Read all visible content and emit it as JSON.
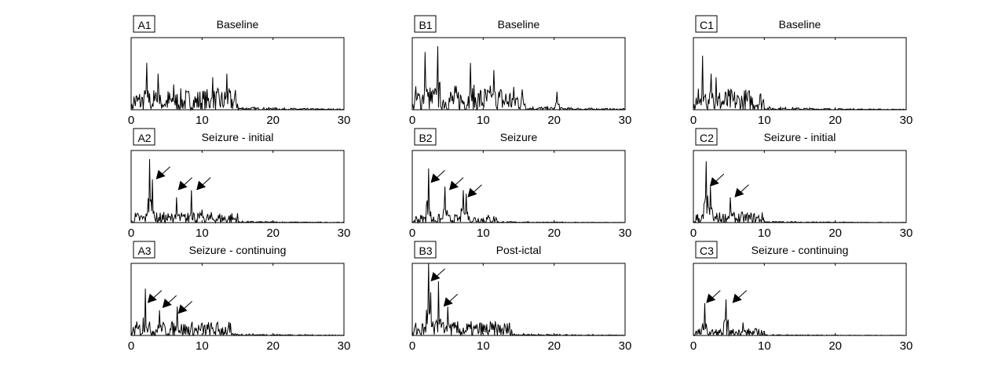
{
  "chart_data": [
    {
      "type": "line",
      "label": "A1",
      "title": "Baseline",
      "xlim": [
        0,
        30
      ],
      "ylim": [
        0,
        1
      ],
      "xticks": [
        0,
        10,
        20,
        30
      ],
      "noise_level": 0.3,
      "noise_cutoff": 15,
      "peaks": [
        [
          2.2,
          0.65
        ],
        [
          3.8,
          0.5
        ],
        [
          6,
          0.35
        ],
        [
          11.5,
          0.45
        ],
        [
          13.5,
          0.5
        ]
      ],
      "arrows": []
    },
    {
      "type": "line",
      "label": "B1",
      "title": "Baseline",
      "xlim": [
        0,
        30
      ],
      "ylim": [
        0,
        1
      ],
      "xticks": [
        0,
        10,
        20,
        30
      ],
      "noise_level": 0.35,
      "noise_cutoff": 16,
      "peaks": [
        [
          1.8,
          0.8
        ],
        [
          3.6,
          0.88
        ],
        [
          8.2,
          0.65
        ],
        [
          11.5,
          0.55
        ],
        [
          20.4,
          0.25
        ]
      ],
      "arrows": []
    },
    {
      "type": "line",
      "label": "C1",
      "title": "Baseline",
      "xlim": [
        0,
        30
      ],
      "ylim": [
        0,
        1
      ],
      "xticks": [
        0,
        10,
        20,
        30
      ],
      "noise_level": 0.3,
      "noise_cutoff": 10,
      "peaks": [
        [
          1.3,
          0.75
        ],
        [
          2.5,
          0.5
        ],
        [
          3.2,
          0.45
        ]
      ],
      "arrows": []
    },
    {
      "type": "line",
      "label": "A2",
      "title": "Seizure - initial",
      "xlim": [
        0,
        30
      ],
      "ylim": [
        0,
        1
      ],
      "xticks": [
        0,
        10,
        20,
        30
      ],
      "noise_level": 0.15,
      "noise_cutoff": 15,
      "peaks": [
        [
          2.6,
          0.88
        ],
        [
          3,
          0.6
        ],
        [
          6.4,
          0.35
        ],
        [
          8.5,
          0.45
        ],
        [
          10,
          0.18
        ]
      ],
      "arrows": [
        [
          3.5,
          0.6
        ],
        [
          6.6,
          0.45
        ],
        [
          9.2,
          0.45
        ]
      ]
    },
    {
      "type": "line",
      "label": "B2",
      "title": "Seizure",
      "xlim": [
        0,
        30
      ],
      "ylim": [
        0,
        1
      ],
      "xticks": [
        0,
        10,
        20,
        30
      ],
      "noise_level": 0.12,
      "noise_cutoff": 12,
      "peaks": [
        [
          2.3,
          0.75
        ],
        [
          4.6,
          0.5
        ],
        [
          7.2,
          0.45
        ],
        [
          7.6,
          0.4
        ]
      ],
      "arrows": [
        [
          2.6,
          0.55
        ],
        [
          5.2,
          0.45
        ],
        [
          7.8,
          0.35
        ]
      ]
    },
    {
      "type": "line",
      "label": "C2",
      "title": "Seizure - initial",
      "xlim": [
        0,
        30
      ],
      "ylim": [
        0,
        1
      ],
      "xticks": [
        0,
        10,
        20,
        30
      ],
      "noise_level": 0.15,
      "noise_cutoff": 10,
      "peaks": [
        [
          1.8,
          0.85
        ],
        [
          2.4,
          0.5
        ],
        [
          5.2,
          0.35
        ]
      ],
      "arrows": [
        [
          2.3,
          0.5
        ],
        [
          5.8,
          0.35
        ]
      ]
    },
    {
      "type": "line",
      "label": "A3",
      "title": "Seizure - continuing",
      "xlim": [
        0,
        30
      ],
      "ylim": [
        0,
        1
      ],
      "xticks": [
        0,
        10,
        20,
        30
      ],
      "noise_level": 0.2,
      "noise_cutoff": 14,
      "peaks": [
        [
          2,
          0.65
        ],
        [
          4,
          0.35
        ],
        [
          6.5,
          0.4
        ]
      ],
      "arrows": [
        [
          2.3,
          0.45
        ],
        [
          4.4,
          0.38
        ],
        [
          6.6,
          0.3
        ]
      ]
    },
    {
      "type": "line",
      "label": "B3",
      "title": "Post-ictal",
      "xlim": [
        0,
        30
      ],
      "ylim": [
        0,
        1
      ],
      "xticks": [
        0,
        10,
        20,
        30
      ],
      "noise_level": 0.2,
      "noise_cutoff": 14,
      "peaks": [
        [
          2.3,
          1.0
        ],
        [
          2.6,
          0.6
        ],
        [
          3.7,
          0.75
        ],
        [
          5,
          0.4
        ]
      ],
      "arrows": [
        [
          2.6,
          0.75
        ],
        [
          4.4,
          0.4
        ]
      ]
    },
    {
      "type": "line",
      "label": "C3",
      "title": "Seizure - continuing",
      "xlim": [
        0,
        30
      ],
      "ylim": [
        0,
        1
      ],
      "xticks": [
        0,
        10,
        20,
        30
      ],
      "noise_level": 0.1,
      "noise_cutoff": 10,
      "peaks": [
        [
          1.6,
          0.45
        ],
        [
          4.6,
          0.5
        ],
        [
          7,
          0.18
        ]
      ],
      "arrows": [
        [
          1.8,
          0.45
        ],
        [
          5.5,
          0.45
        ]
      ]
    }
  ]
}
